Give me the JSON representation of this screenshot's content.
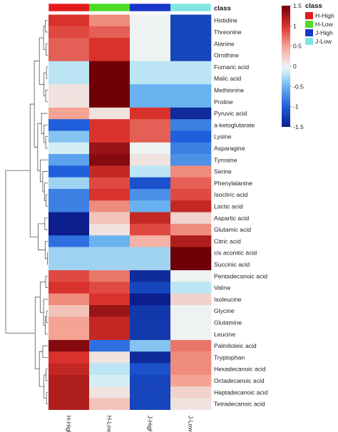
{
  "chart_data": {
    "type": "heatmap",
    "annotation_title": "class",
    "columns": [
      "H-High",
      "H-Low",
      "J-High",
      "J-Low"
    ],
    "column_colors": [
      "#e41a1c",
      "#4cdc27",
      "#1836c9",
      "#7fe6e0"
    ],
    "rows": [
      "Histidine",
      "Threonine",
      "Alanine",
      "Ornithine",
      "Fumaric acid",
      "Malic acid",
      "Methionine",
      "Proline",
      "Pyruvic acid",
      "a-ketoglutarate",
      "Lysine",
      "Asparagine",
      "Tyrosine",
      "Serine",
      "Phenylalanine",
      "Isocitric acid",
      "Lactic acid",
      "Aspartic acid",
      "Glutamic acid",
      "Citric acid",
      "cis aconitic acid",
      "Succinic acid",
      "Pentadecanoic acid",
      "Valine",
      "Isoleucine",
      "Glycine",
      "Glutamine",
      "Leucine",
      "Palmitoleic acid",
      "Tryptophan",
      "Hexadecanoic acid",
      "Octadecanoic acid",
      "Heptadecanoic acid",
      "Tetradecanoic acid"
    ],
    "values": [
      [
        1.0,
        0.6,
        0.0,
        -1.2
      ],
      [
        0.9,
        0.8,
        0.0,
        -1.2
      ],
      [
        0.8,
        1.0,
        0.0,
        -1.2
      ],
      [
        0.8,
        1.0,
        0.0,
        -1.2
      ],
      [
        -0.2,
        1.5,
        -0.2,
        -0.2
      ],
      [
        -0.2,
        1.5,
        -0.2,
        -0.2
      ],
      [
        0.1,
        1.5,
        -0.5,
        -0.5
      ],
      [
        0.1,
        1.5,
        -0.5,
        -0.5
      ],
      [
        0.5,
        0.1,
        1.0,
        -1.4
      ],
      [
        -1.0,
        1.0,
        0.8,
        -0.8
      ],
      [
        -0.4,
        1.0,
        0.8,
        -1.0
      ],
      [
        -0.1,
        1.3,
        0.0,
        -0.8
      ],
      [
        -0.6,
        1.4,
        0.1,
        -0.7
      ],
      [
        -1.0,
        1.1,
        -0.2,
        0.6
      ],
      [
        -0.3,
        0.9,
        -1.1,
        0.8
      ],
      [
        -0.8,
        1.0,
        -0.7,
        0.9
      ],
      [
        -0.8,
        0.6,
        -0.5,
        1.1
      ],
      [
        -1.5,
        0.3,
        1.1,
        0.2
      ],
      [
        -1.5,
        0.1,
        0.9,
        0.6
      ],
      [
        -0.9,
        -0.5,
        0.4,
        1.2
      ],
      [
        -0.3,
        -0.3,
        -0.3,
        1.5
      ],
      [
        -0.3,
        -0.3,
        -0.3,
        1.5
      ],
      [
        0.9,
        0.7,
        -1.4,
        0.0
      ],
      [
        1.0,
        0.9,
        -1.2,
        -0.2
      ],
      [
        0.6,
        1.0,
        -1.5,
        0.2
      ],
      [
        0.3,
        1.3,
        -1.3,
        0.0
      ],
      [
        0.5,
        1.1,
        -1.3,
        0.0
      ],
      [
        0.5,
        1.1,
        -1.3,
        0.0
      ],
      [
        1.4,
        -0.9,
        -0.4,
        0.7
      ],
      [
        1.0,
        0.1,
        -1.4,
        0.6
      ],
      [
        1.1,
        -0.2,
        -1.1,
        0.6
      ],
      [
        1.2,
        -0.1,
        -1.2,
        0.5
      ],
      [
        1.2,
        0.1,
        -1.2,
        0.2
      ],
      [
        1.2,
        0.3,
        -1.2,
        0.1
      ]
    ],
    "color_scale": {
      "min": -1.5,
      "max": 1.5,
      "stops": [
        {
          "value": -1.5,
          "color": "#0b1e8c"
        },
        {
          "value": -1.0,
          "color": "#1f5fdc"
        },
        {
          "value": -0.5,
          "color": "#6ab2ef"
        },
        {
          "value": -0.15,
          "color": "#c9ecf5"
        },
        {
          "value": 0.0,
          "color": "#eef2f2"
        },
        {
          "value": 0.5,
          "color": "#f5a393"
        },
        {
          "value": 1.0,
          "color": "#d9322c"
        },
        {
          "value": 1.5,
          "color": "#6f0008"
        }
      ],
      "ticks": [
        1.5,
        1,
        0.5,
        0,
        -0.5,
        -1,
        -1.5
      ],
      "tick_labels": [
        "1.5",
        "1",
        "0.5",
        "0",
        "-0.5",
        "-1",
        "-1.5"
      ]
    },
    "legend": {
      "title": "class",
      "entries": [
        "H-High",
        "H-Low",
        "J-High",
        "J-Low"
      ],
      "placement": "top-right"
    },
    "row_dendrogram": true,
    "column_dendrogram": false
  }
}
